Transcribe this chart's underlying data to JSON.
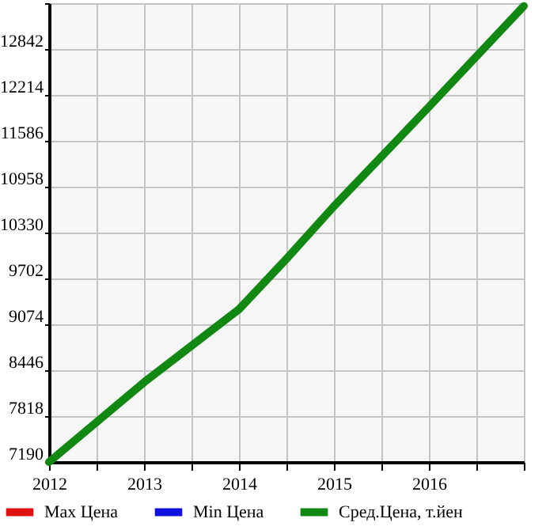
{
  "chart_data": {
    "type": "line",
    "x": [
      2012,
      2013,
      2014,
      2014.5,
      2015,
      2016,
      2017
    ],
    "series": [
      {
        "name": "Max Цена",
        "color": "#dd1111",
        "values": [
          null,
          null,
          null,
          null,
          null,
          null,
          null
        ]
      },
      {
        "name": "Min Цена",
        "color": "#1111dd",
        "values": [
          null,
          null,
          null,
          null,
          null,
          null,
          null
        ]
      },
      {
        "name": "Сред.Цена, т.йен",
        "color": "#118811",
        "values": [
          7190,
          8280,
          9280,
          9970,
          10690,
          12050,
          13430
        ]
      }
    ],
    "xlim": [
      2012,
      2017
    ],
    "xticks": [
      2012,
      {
        "value": 2012.5,
        "label": null
      },
      2013,
      {
        "value": 2013.5,
        "label": null
      },
      2014,
      {
        "value": 2014.5,
        "label": null
      },
      2015,
      {
        "value": 2015.5,
        "label": null
      },
      2016,
      {
        "value": 2016.5,
        "label": null
      },
      {
        "value": 2017,
        "label": null
      }
    ],
    "ylim": [
      7190,
      13470
    ],
    "yticks": [
      7190,
      7818,
      8446,
      9074,
      9702,
      10330,
      10958,
      11586,
      12214,
      12842,
      {
        "value": 13470,
        "label": null
      }
    ],
    "grid": true,
    "legend": "bottom",
    "marker": "none",
    "line_style": "solid"
  }
}
